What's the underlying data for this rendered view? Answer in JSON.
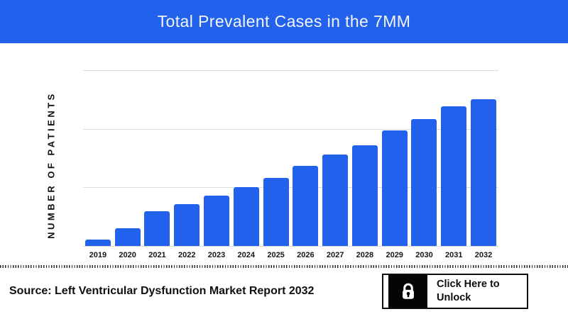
{
  "header": {
    "title": "Total Prevalent Cases in the 7MM"
  },
  "chart_data": {
    "type": "bar",
    "title": "Total Prevalent Cases in the 7MM",
    "categories": [
      "2019",
      "2020",
      "2021",
      "2022",
      "2023",
      "2024",
      "2025",
      "2026",
      "2027",
      "2028",
      "2029",
      "2030",
      "2031",
      "2032"
    ],
    "values": [
      4.3,
      12.1,
      23.7,
      28.5,
      34.3,
      40.1,
      46.4,
      54.6,
      62.3,
      68.6,
      78.7,
      86.5,
      95.2,
      100
    ],
    "values_unit": "relative, percent of tallest (2032) bar; y-axis has no numeric tick labels",
    "xlabel": "",
    "ylabel": "NUMBER OF PATIENTS",
    "y_tick_labels": [],
    "ylim": [
      0,
      120
    ],
    "grid": "horizontal",
    "legend": "none",
    "bar_color": "#2161eb"
  },
  "footer": {
    "source": "Source: Left Ventricular Dysfunction Market Report 2032",
    "unlock_button": {
      "label": "Click Here to Unlock",
      "icon": "lock-icon"
    }
  },
  "colors": {
    "header_bg": "#2161eb",
    "bar_blue": "#2161eb",
    "gridline": "#dcdcdc",
    "title_text": "#f3f5f8",
    "text_dark": "#111111",
    "lock_box_bg": "#050505"
  }
}
